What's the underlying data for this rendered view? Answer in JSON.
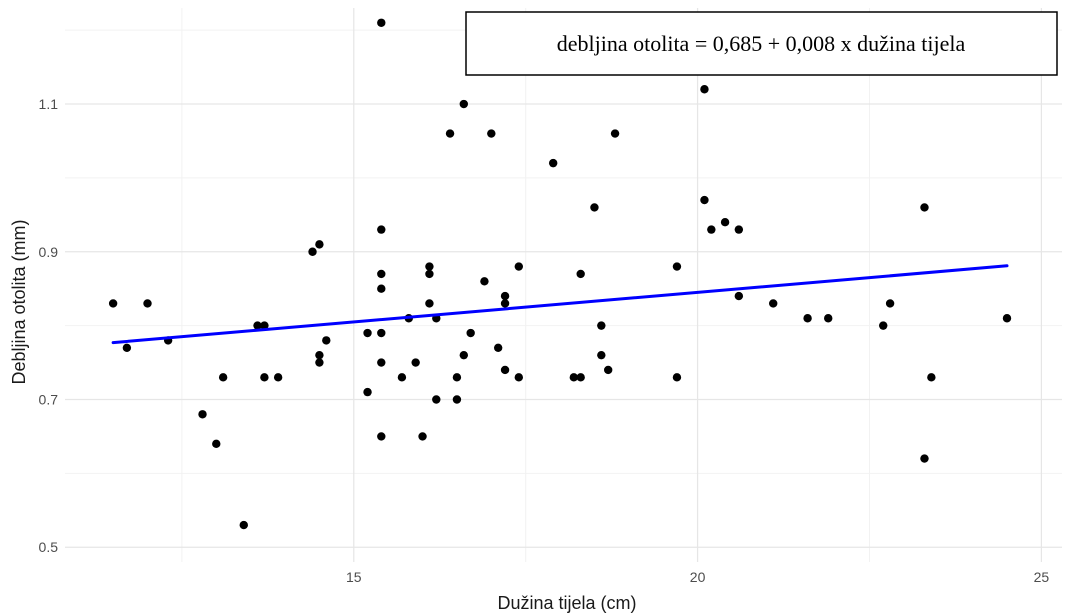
{
  "chart_data": {
    "type": "scatter",
    "title": "",
    "xlabel": "Dužina tijela (cm)",
    "ylabel": "Debljina otolita (mm)",
    "xlim": [
      10.8,
      25.3
    ],
    "ylim": [
      0.48,
      1.23
    ],
    "x_ticks": [
      15,
      20,
      25
    ],
    "y_ticks": [
      0.5,
      0.7,
      0.9,
      1.1
    ],
    "x_tick_labels": [
      "15",
      "20",
      "25"
    ],
    "y_tick_labels": [
      "0.5",
      "0.7",
      "0.9",
      "1.1"
    ],
    "grid": true,
    "annotation": "debljina otolita = 0,685 + 0,008 x dužina tijela",
    "series": [
      {
        "values": [
          [
            11.5,
            0.83
          ],
          [
            11.7,
            0.77
          ],
          [
            12.0,
            0.83
          ],
          [
            12.3,
            0.78
          ],
          [
            12.8,
            0.68
          ],
          [
            13.0,
            0.64
          ],
          [
            13.1,
            0.73
          ],
          [
            13.4,
            0.53
          ],
          [
            13.6,
            0.8
          ],
          [
            13.7,
            0.8
          ],
          [
            13.7,
            0.73
          ],
          [
            13.9,
            0.73
          ],
          [
            14.4,
            0.9
          ],
          [
            14.5,
            0.91
          ],
          [
            14.5,
            0.76
          ],
          [
            14.5,
            0.75
          ],
          [
            14.6,
            0.78
          ],
          [
            15.2,
            0.79
          ],
          [
            15.2,
            0.71
          ],
          [
            15.4,
            1.21
          ],
          [
            15.4,
            0.93
          ],
          [
            15.4,
            0.87
          ],
          [
            15.4,
            0.85
          ],
          [
            15.4,
            0.79
          ],
          [
            15.4,
            0.75
          ],
          [
            15.4,
            0.65
          ],
          [
            15.7,
            0.73
          ],
          [
            15.8,
            0.81
          ],
          [
            15.9,
            0.75
          ],
          [
            16.0,
            0.65
          ],
          [
            16.1,
            0.88
          ],
          [
            16.1,
            0.87
          ],
          [
            16.1,
            0.83
          ],
          [
            16.2,
            0.81
          ],
          [
            16.2,
            0.7
          ],
          [
            16.4,
            1.06
          ],
          [
            16.5,
            0.73
          ],
          [
            16.5,
            0.7
          ],
          [
            16.6,
            1.1
          ],
          [
            16.6,
            0.76
          ],
          [
            16.7,
            0.79
          ],
          [
            16.9,
            0.86
          ],
          [
            17.0,
            1.06
          ],
          [
            17.1,
            0.77
          ],
          [
            17.2,
            0.84
          ],
          [
            17.2,
            0.83
          ],
          [
            17.2,
            0.74
          ],
          [
            17.4,
            0.88
          ],
          [
            17.4,
            0.73
          ],
          [
            17.9,
            1.02
          ],
          [
            18.2,
            0.73
          ],
          [
            18.3,
            0.87
          ],
          [
            18.3,
            0.73
          ],
          [
            18.5,
            0.96
          ],
          [
            18.6,
            0.8
          ],
          [
            18.6,
            0.76
          ],
          [
            18.7,
            0.74
          ],
          [
            18.8,
            1.06
          ],
          [
            19.7,
            0.88
          ],
          [
            19.7,
            0.73
          ],
          [
            20.1,
            1.12
          ],
          [
            20.1,
            0.97
          ],
          [
            20.2,
            0.93
          ],
          [
            20.4,
            0.94
          ],
          [
            20.6,
            0.93
          ],
          [
            20.6,
            0.84
          ],
          [
            21.1,
            0.83
          ],
          [
            21.6,
            0.81
          ],
          [
            21.9,
            0.81
          ],
          [
            22.7,
            0.8
          ],
          [
            22.8,
            0.83
          ],
          [
            23.3,
            0.96
          ],
          [
            23.3,
            0.62
          ],
          [
            23.4,
            0.73
          ],
          [
            24.5,
            0.81
          ]
        ],
        "color": "#000000"
      }
    ],
    "regression_line": {
      "intercept": 0.685,
      "slope": 0.008,
      "x_range": [
        11.5,
        24.5
      ],
      "color": "#0000ff"
    }
  }
}
